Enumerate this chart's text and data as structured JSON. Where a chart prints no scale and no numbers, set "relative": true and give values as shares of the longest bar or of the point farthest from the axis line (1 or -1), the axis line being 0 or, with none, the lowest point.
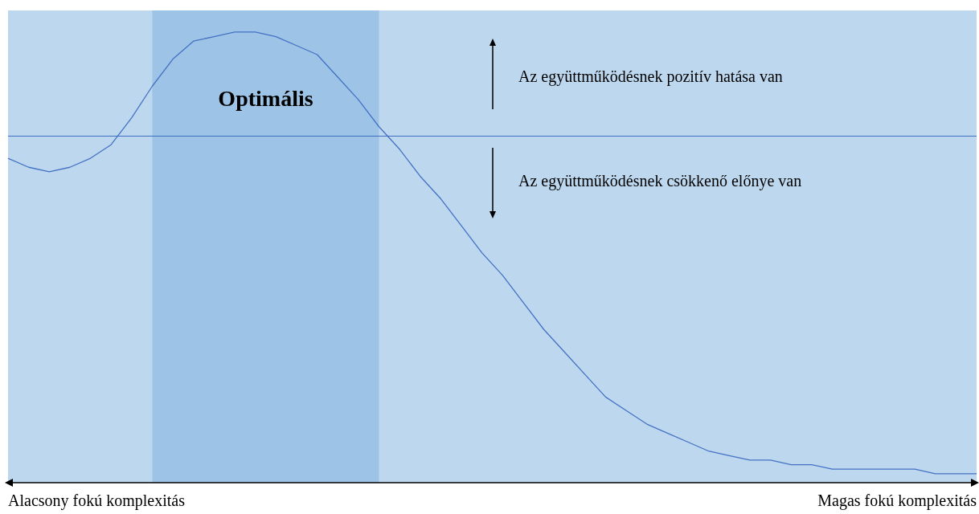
{
  "chart_data": {
    "type": "line",
    "relative": true,
    "categories": [
      null,
      null,
      null,
      null,
      null,
      null,
      null,
      null,
      null,
      null,
      null,
      null,
      null,
      null,
      null,
      null,
      null,
      null,
      null,
      null,
      null,
      null,
      null,
      null,
      null,
      null,
      null,
      null,
      null,
      null,
      null,
      null,
      null,
      null,
      null,
      null,
      null,
      null,
      null,
      null,
      null,
      null,
      null,
      null,
      null,
      null,
      null,
      null
    ],
    "series": [
      {
        "color": "#4472c4",
        "values": [
          0.72,
          0.7,
          0.69,
          0.7,
          0.72,
          0.75,
          0.81,
          0.88,
          0.94,
          0.98,
          0.99,
          1,
          1,
          0.99,
          0.97,
          0.95,
          0.9,
          0.85,
          0.79,
          0.74,
          0.68,
          0.63,
          0.57,
          0.51,
          0.46,
          0.4,
          0.34,
          0.29,
          0.24,
          0.19,
          0.16,
          0.13,
          0.11,
          0.09,
          0.07,
          0.06,
          0.05,
          0.05,
          0.04,
          0.04,
          0.03,
          0.03,
          0.03,
          0.03,
          0.03,
          0.02,
          0.02,
          0.02
        ]
      }
    ],
    "ref_lines": [
      {
        "axis": "y",
        "value": 0.77,
        "color": "#3f6fc0"
      }
    ],
    "annotations": [
      "Az együttműködésnek pozitív hatása van",
      "Az együttműködésnek csökkenő előnye van",
      "Alacsony fokú komplexitás",
      "Magas fokú komplexitás",
      "Optimális"
    ],
    "grid": false,
    "marker": "none",
    "line_style": "solid"
  }
}
